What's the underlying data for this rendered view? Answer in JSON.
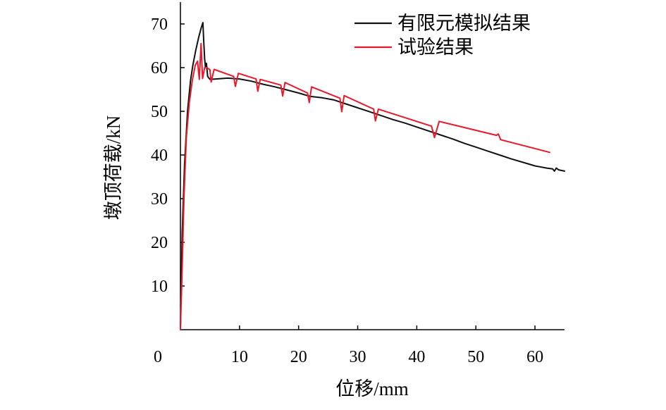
{
  "chart_data": {
    "type": "line",
    "title": "",
    "xlabel": "位移/mm",
    "ylabel": "墩顶荷载/kN",
    "xlim": [
      0,
      65
    ],
    "ylim": [
      0,
      75
    ],
    "x_ticks": [
      0,
      10,
      20,
      30,
      40,
      50,
      60
    ],
    "y_ticks": [
      10,
      20,
      30,
      40,
      50,
      60,
      70
    ],
    "grid": false,
    "legend_position": "top-right",
    "series": [
      {
        "name": "有限元模拟结果",
        "color": "#111111",
        "points": [
          [
            0,
            0
          ],
          [
            0.3,
            22
          ],
          [
            0.7,
            38
          ],
          [
            1.2,
            50
          ],
          [
            1.7,
            57
          ],
          [
            2.1,
            60.5
          ],
          [
            2.6,
            64
          ],
          [
            3.1,
            67
          ],
          [
            3.5,
            69
          ],
          [
            3.8,
            70.3
          ],
          [
            3.95,
            66
          ],
          [
            4.1,
            62
          ],
          [
            4.25,
            60
          ],
          [
            4.4,
            61
          ],
          [
            4.6,
            58
          ],
          [
            5.0,
            57.3
          ],
          [
            6.0,
            57.4
          ],
          [
            8.0,
            57.6
          ],
          [
            10.0,
            57.4
          ],
          [
            12.0,
            56.9
          ],
          [
            14.0,
            56.2
          ],
          [
            16.0,
            55.6
          ],
          [
            18.0,
            54.9
          ],
          [
            20.0,
            54.2
          ],
          [
            22.0,
            53.4
          ],
          [
            24.0,
            53.1
          ],
          [
            26.0,
            52.6
          ],
          [
            28.0,
            51.7
          ],
          [
            30.0,
            50.8
          ],
          [
            32.0,
            49.9
          ],
          [
            34.0,
            49.0
          ],
          [
            36.0,
            48.1
          ],
          [
            38.0,
            47.3
          ],
          [
            40.0,
            46.4
          ],
          [
            42.0,
            45.5
          ],
          [
            44.0,
            44.6
          ],
          [
            46.0,
            43.7
          ],
          [
            48.0,
            42.7
          ],
          [
            50.0,
            41.8
          ],
          [
            52.0,
            40.9
          ],
          [
            54.0,
            40.0
          ],
          [
            56.0,
            39.1
          ],
          [
            58.0,
            38.3
          ],
          [
            60.0,
            37.5
          ],
          [
            62.0,
            37.0
          ],
          [
            63.0,
            36.8
          ],
          [
            63.3,
            36.3
          ],
          [
            63.6,
            37.0
          ],
          [
            64.0,
            36.6
          ],
          [
            65.0,
            36.3
          ]
        ]
      },
      {
        "name": "试验结果",
        "color": "#e8192c",
        "points": [
          [
            0,
            0
          ],
          [
            0.3,
            14
          ],
          [
            0.6,
            30
          ],
          [
            1.0,
            44
          ],
          [
            1.5,
            52
          ],
          [
            2.0,
            57
          ],
          [
            2.5,
            60.5
          ],
          [
            2.9,
            61.5
          ],
          [
            3.2,
            57.3
          ],
          [
            3.5,
            65.5
          ],
          [
            3.75,
            57.5
          ],
          [
            4.1,
            60.0
          ],
          [
            4.5,
            60.0
          ],
          [
            5.0,
            59.5
          ],
          [
            5.2,
            56.7
          ],
          [
            5.7,
            59.6
          ],
          [
            9.0,
            58.0
          ],
          [
            9.3,
            55.7
          ],
          [
            9.8,
            58.7
          ],
          [
            12.8,
            57.4
          ],
          [
            13.1,
            54.6
          ],
          [
            13.5,
            57.3
          ],
          [
            17.0,
            56.0
          ],
          [
            17.3,
            53.5
          ],
          [
            17.7,
            56.6
          ],
          [
            21.5,
            54.2
          ],
          [
            21.8,
            52.0
          ],
          [
            22.2,
            55.6
          ],
          [
            27.0,
            53.0
          ],
          [
            27.3,
            49.9
          ],
          [
            27.7,
            53.6
          ],
          [
            32.7,
            50.5
          ],
          [
            33.0,
            47.8
          ],
          [
            33.5,
            50.5
          ],
          [
            42.5,
            46.6
          ],
          [
            43.0,
            44.0
          ],
          [
            43.8,
            47.7
          ],
          [
            53.5,
            44.5
          ],
          [
            53.8,
            44.8
          ],
          [
            54.2,
            43.5
          ],
          [
            62.5,
            40.6
          ]
        ]
      }
    ]
  }
}
